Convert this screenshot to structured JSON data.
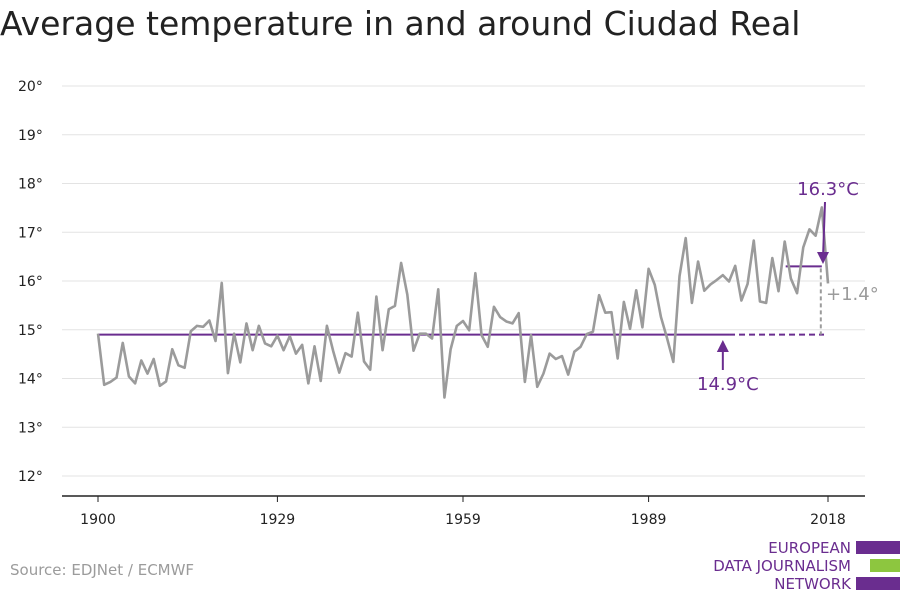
{
  "title": "Average temperature in and around Ciudad Real",
  "source": "Source: EDJNet / ECMWF",
  "logo": {
    "lines": [
      "EUROPEAN",
      "DATA JOURNALISM",
      "NETWORK"
    ],
    "bar_colors": [
      "#6a2d8f",
      "#8dc63f",
      "#6a2d8f"
    ]
  },
  "colors": {
    "series": "#9b9b9b",
    "accent": "#6a2d8f",
    "grid": "#e3e3e3",
    "axis": "#222222",
    "delta": "#9b9b9b"
  },
  "chart_data": {
    "type": "line",
    "title": "Average temperature in and around Ciudad Real",
    "xlabel": "",
    "ylabel": "",
    "xlim": [
      1900,
      2018
    ],
    "ylim": [
      12,
      20
    ],
    "x_ticks": [
      1900,
      1929,
      1959,
      1989,
      2018
    ],
    "y_ticks": [
      12,
      13,
      14,
      15,
      16,
      17,
      18,
      19,
      20
    ],
    "y_tick_suffix": "°",
    "grid": true,
    "series": [
      {
        "x": [
          1900,
          1901,
          1902,
          1903,
          1904,
          1905,
          1906,
          1907,
          1908,
          1909,
          1910,
          1911,
          1912,
          1913,
          1914,
          1915,
          1916,
          1917,
          1918,
          1919,
          1920,
          1921,
          1922,
          1923,
          1924,
          1925,
          1926,
          1927,
          1928,
          1929,
          1930,
          1931,
          1932,
          1933,
          1934,
          1935,
          1936,
          1937,
          1938,
          1939,
          1940,
          1941,
          1942,
          1943,
          1944,
          1945,
          1946,
          1947,
          1948,
          1949,
          1950,
          1951,
          1952,
          1953,
          1954,
          1955,
          1956,
          1957,
          1958,
          1959,
          1960,
          1961,
          1962,
          1963,
          1964,
          1965,
          1966,
          1967,
          1968,
          1969,
          1970,
          1971,
          1972,
          1973,
          1974,
          1975,
          1976,
          1977,
          1978,
          1979,
          1980,
          1981,
          1982,
          1983,
          1984,
          1985,
          1986,
          1987,
          1988,
          1989,
          1990,
          1991,
          1992,
          1993,
          1994,
          1995,
          1996,
          1997,
          1998,
          1999,
          2000,
          2001,
          2002,
          2003,
          2004,
          2005,
          2006,
          2007,
          2008,
          2009,
          2010,
          2011,
          2012,
          2013,
          2014,
          2015,
          2016,
          2017,
          2018
        ],
        "values": [
          14.92,
          13.87,
          13.93,
          14.02,
          14.73,
          14.04,
          13.9,
          14.37,
          14.1,
          14.4,
          13.85,
          13.94,
          14.6,
          14.27,
          14.22,
          14.97,
          15.08,
          15.06,
          15.19,
          14.77,
          15.96,
          14.11,
          14.92,
          14.33,
          15.13,
          14.58,
          15.08,
          14.72,
          14.66,
          14.88,
          14.58,
          14.87,
          14.51,
          14.69,
          13.9,
          14.66,
          13.95,
          15.08,
          14.57,
          14.12,
          14.52,
          14.45,
          15.35,
          14.35,
          14.18,
          15.68,
          14.58,
          15.42,
          15.49,
          16.37,
          15.72,
          14.57,
          14.92,
          14.92,
          14.82,
          15.83,
          13.61,
          14.6,
          15.08,
          15.18,
          14.99,
          16.16,
          14.89,
          14.65,
          15.47,
          15.26,
          15.17,
          15.13,
          15.34,
          13.93,
          14.89,
          13.83,
          14.1,
          14.51,
          14.4,
          14.46,
          14.08,
          14.55,
          14.65,
          14.91,
          14.96,
          15.71,
          15.35,
          15.36,
          14.41,
          15.57,
          15.02,
          15.81,
          15.05,
          16.25,
          15.92,
          15.26,
          14.82,
          14.34,
          16.1,
          16.88,
          15.55,
          16.4,
          15.8,
          15.93,
          16.02,
          16.12,
          15.99,
          16.31,
          15.6,
          15.94,
          16.83,
          15.58,
          15.55,
          16.47,
          15.79,
          16.81,
          16.05,
          15.75,
          16.69,
          17.06,
          16.93,
          17.51,
          15.95
        ]
      }
    ],
    "annotations": {
      "baseline": {
        "value": 14.9,
        "from": 1900,
        "to": 2018,
        "solid_until": 2002,
        "label": "14.9°C",
        "arrow_year": 2001
      },
      "recent": {
        "value": 16.3,
        "from": 2011,
        "to": 2017,
        "label": "16.3°C"
      },
      "delta_label": "+1.4°"
    }
  }
}
